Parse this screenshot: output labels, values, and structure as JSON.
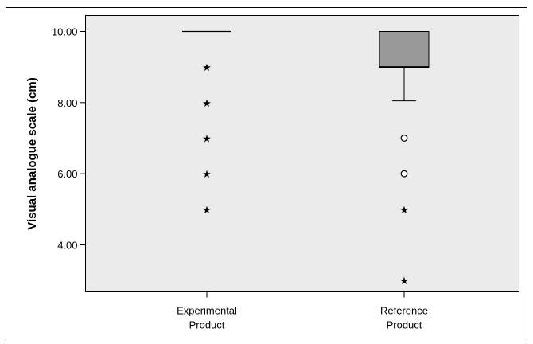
{
  "chart_data": {
    "type": "box",
    "title": "",
    "xlabel": "",
    "ylabel": "Visual analogue scale (cm)",
    "ylim": [
      2.6,
      10.8
    ],
    "yticks": [
      4,
      6,
      8,
      10
    ],
    "ytick_labels": [
      "4.00",
      "6.00",
      "8.00",
      "10.00"
    ],
    "grid": false,
    "background": "#ebebeb",
    "box_fill": "#999999",
    "categories": [
      {
        "label": [
          "Experimental",
          "Product"
        ],
        "min": 10,
        "q1": 10,
        "median": 10,
        "q3": 10,
        "max": 10,
        "outliers": [],
        "extremes": [
          9,
          8,
          7,
          6,
          5
        ]
      },
      {
        "label": [
          "Reference",
          "Product"
        ],
        "min": 8.05,
        "q1": 9,
        "median": 9,
        "q3": 10,
        "max": 10,
        "outliers": [
          7,
          6
        ],
        "extremes": [
          5,
          3
        ]
      }
    ]
  }
}
